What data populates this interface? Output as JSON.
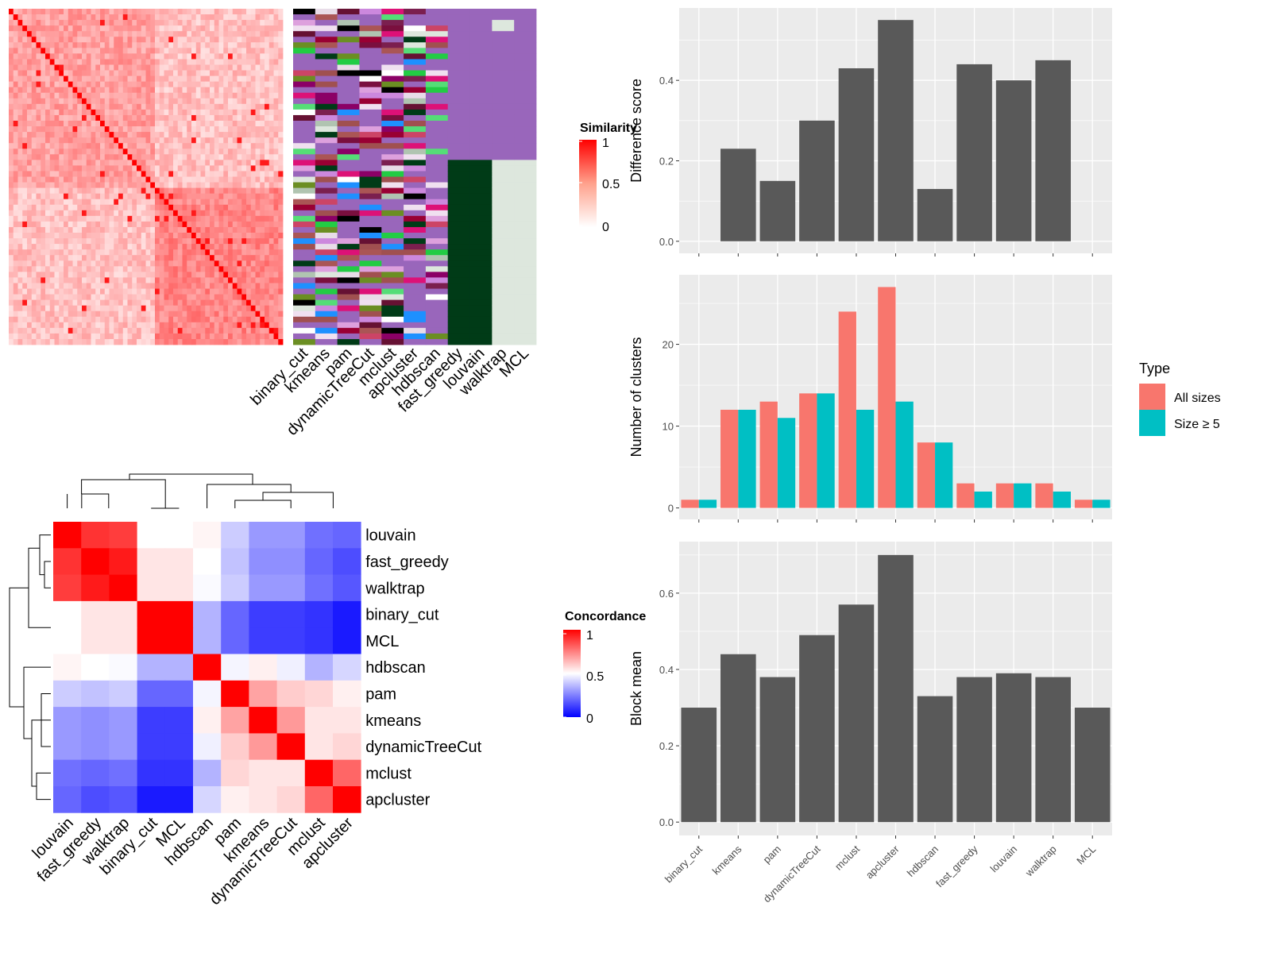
{
  "chart_data": [
    {
      "type": "heatmap",
      "name": "cell-similarity-heatmap",
      "legend_title": "Similarity",
      "legend_ticks": [
        "1",
        "0.5",
        "0"
      ],
      "colors": {
        "high": "#FF0000",
        "mid": "#FFA18C",
        "low": "#FFFFFF"
      }
    },
    {
      "type": "table",
      "name": "cluster-assignment-annotation",
      "columns": [
        "binary_cut",
        "kmeans",
        "pam",
        "dynamicTreeCut",
        "mclust",
        "apcluster",
        "hdbscan",
        "fast_greedy",
        "louvain",
        "walktrap",
        "MCL"
      ],
      "background_color": "#9966BB"
    },
    {
      "type": "heatmap",
      "name": "concordance-heatmap",
      "legend_title": "Concordance",
      "legend_ticks": [
        "1",
        "0.5",
        "0"
      ],
      "row_labels": [
        "louvain",
        "fast_greedy",
        "walktrap",
        "binary_cut",
        "MCL",
        "hdbscan",
        "pam",
        "kmeans",
        "dynamicTreeCut",
        "mclust",
        "apcluster"
      ],
      "col_labels": [
        "louvain",
        "fast_greedy",
        "walktrap",
        "binary_cut",
        "MCL",
        "hdbscan",
        "pam",
        "kmeans",
        "dynamicTreeCut",
        "mclust",
        "apcluster"
      ],
      "values": [
        [
          1.0,
          0.9,
          0.88,
          0.5,
          0.5,
          0.52,
          0.4,
          0.3,
          0.3,
          0.22,
          0.2
        ],
        [
          0.9,
          1.0,
          0.95,
          0.55,
          0.55,
          0.5,
          0.38,
          0.28,
          0.28,
          0.2,
          0.15
        ],
        [
          0.88,
          0.95,
          1.0,
          0.55,
          0.55,
          0.49,
          0.4,
          0.3,
          0.3,
          0.22,
          0.17
        ],
        [
          0.5,
          0.55,
          0.55,
          1.0,
          1.0,
          0.35,
          0.2,
          0.12,
          0.12,
          0.1,
          0.05
        ],
        [
          0.5,
          0.55,
          0.55,
          1.0,
          1.0,
          0.35,
          0.2,
          0.12,
          0.12,
          0.1,
          0.05
        ],
        [
          0.52,
          0.5,
          0.49,
          0.35,
          0.35,
          1.0,
          0.48,
          0.53,
          0.47,
          0.35,
          0.42
        ],
        [
          0.4,
          0.38,
          0.4,
          0.2,
          0.2,
          0.48,
          1.0,
          0.68,
          0.6,
          0.58,
          0.53
        ],
        [
          0.3,
          0.28,
          0.3,
          0.12,
          0.12,
          0.53,
          0.68,
          1.0,
          0.7,
          0.55,
          0.55
        ],
        [
          0.3,
          0.28,
          0.3,
          0.12,
          0.12,
          0.47,
          0.6,
          0.7,
          1.0,
          0.55,
          0.58
        ],
        [
          0.22,
          0.2,
          0.22,
          0.1,
          0.1,
          0.35,
          0.58,
          0.55,
          0.55,
          1.0,
          0.8
        ],
        [
          0.2,
          0.15,
          0.17,
          0.05,
          0.05,
          0.42,
          0.53,
          0.55,
          0.58,
          0.8,
          1.0
        ]
      ]
    },
    {
      "type": "bar",
      "name": "difference-score",
      "categories": [
        "binary_cut",
        "kmeans",
        "pam",
        "dynamicTreeCut",
        "mclust",
        "apcluster",
        "hdbscan",
        "fast_greedy",
        "louvain",
        "walktrap",
        "MCL"
      ],
      "values": [
        0.0,
        0.23,
        0.15,
        0.3,
        0.43,
        0.55,
        0.13,
        0.44,
        0.4,
        0.45,
        0.0
      ],
      "ylabel": "Difference score",
      "ylim": [
        -0.03,
        0.58
      ],
      "yticks": [
        "0.0",
        "0.2",
        "0.4"
      ],
      "bar_color": "#595959",
      "panel_color": "#EBEBEB"
    },
    {
      "type": "bar",
      "name": "number-of-clusters",
      "categories": [
        "binary_cut",
        "kmeans",
        "pam",
        "dynamicTreeCut",
        "mclust",
        "apcluster",
        "hdbscan",
        "fast_greedy",
        "louvain",
        "walktrap",
        "MCL"
      ],
      "series": [
        {
          "name": "All sizes",
          "color": "#F8766D",
          "values": [
            1,
            12,
            13,
            14,
            24,
            27,
            8,
            3,
            3,
            3,
            1
          ]
        },
        {
          "name": "Size ≥ 5",
          "color": "#00BFC4",
          "values": [
            1,
            12,
            11,
            14,
            12,
            13,
            8,
            2,
            3,
            2,
            1
          ]
        }
      ],
      "ylabel": "Number of clusters",
      "ylim": [
        -1.4,
        28.5
      ],
      "yticks": [
        "0",
        "10",
        "20"
      ],
      "legend_title": "Type",
      "legend_position": "right",
      "panel_color": "#EBEBEB"
    },
    {
      "type": "bar",
      "name": "block-mean",
      "categories": [
        "binary_cut",
        "kmeans",
        "pam",
        "dynamicTreeCut",
        "mclust",
        "apcluster",
        "hdbscan",
        "fast_greedy",
        "louvain",
        "walktrap",
        "MCL"
      ],
      "values": [
        0.3,
        0.44,
        0.38,
        0.49,
        0.57,
        0.7,
        0.33,
        0.38,
        0.39,
        0.38,
        0.3
      ],
      "ylabel": "Block mean",
      "ylim": [
        -0.035,
        0.735
      ],
      "yticks": [
        "0.0",
        "0.2",
        "0.4",
        "0.6"
      ],
      "xticks": [
        "binary_cut",
        "kmeans",
        "pam",
        "dynamicTreeCut",
        "mclust",
        "apcluster",
        "hdbscan",
        "fast_greedy",
        "louvain",
        "walktrap",
        "MCL"
      ],
      "bar_color": "#595959",
      "panel_color": "#EBEBEB"
    }
  ]
}
